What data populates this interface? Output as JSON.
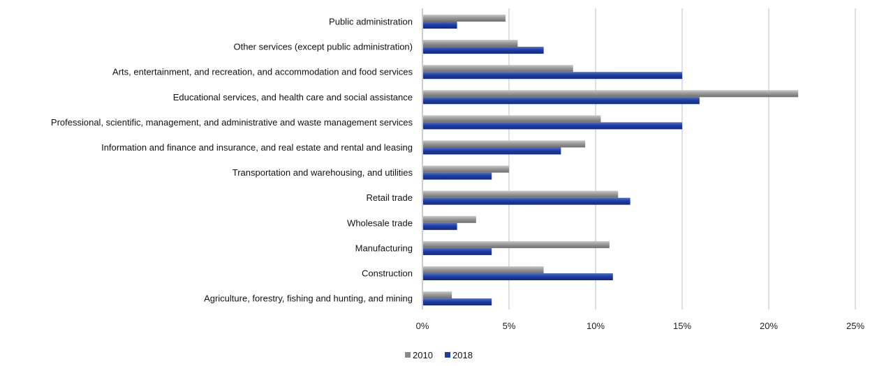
{
  "chart_data": {
    "type": "bar",
    "orientation": "horizontal",
    "title": "",
    "xlabel": "",
    "ylabel": "",
    "xlim": [
      0,
      25
    ],
    "value_unit": "%",
    "x_ticks": [
      "0%",
      "5%",
      "10%",
      "15%",
      "20%",
      "25%"
    ],
    "grid": "vertical",
    "legend_position": "bottom",
    "categories": [
      "Public administration",
      "Other services (except public administration)",
      "Arts, entertainment, and recreation, and accommodation and food services",
      "Educational services, and health care and social assistance",
      "Professional, scientific, management, and administrative and waste management services",
      "Information and finance and insurance, and real estate and rental and leasing",
      "Transportation and warehousing, and utilities",
      "Retail trade",
      "Wholesale trade",
      "Manufacturing",
      "Construction",
      "Agriculture, forestry, fishing and hunting, and mining"
    ],
    "series": [
      {
        "name": "2010",
        "color": "#8a8a8a",
        "values": [
          4.8,
          5.5,
          8.7,
          21.7,
          10.3,
          9.4,
          5.0,
          11.3,
          3.1,
          10.8,
          7.0,
          1.7
        ]
      },
      {
        "name": "2018",
        "color": "#1f3da3",
        "values": [
          2.0,
          7.0,
          15.0,
          16.0,
          15.0,
          8.0,
          4.0,
          12.0,
          2.0,
          4.0,
          11.0,
          4.0
        ]
      }
    ]
  }
}
